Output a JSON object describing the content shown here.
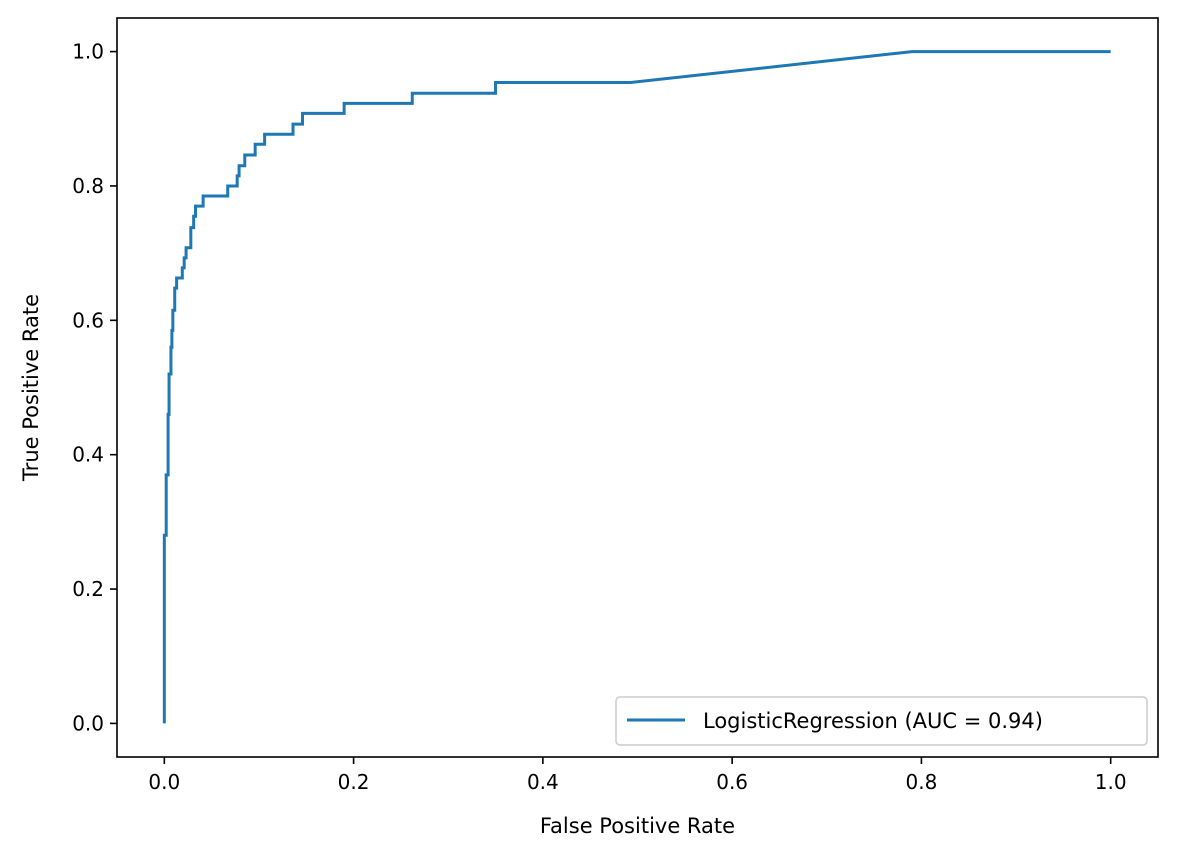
{
  "chart_data": {
    "type": "line",
    "title": "",
    "xlabel": "False Positive Rate",
    "ylabel": "True Positive Rate",
    "xlim": [
      -0.05,
      1.05
    ],
    "ylim": [
      -0.05,
      1.05
    ],
    "xticks": [
      0.0,
      0.2,
      0.4,
      0.6,
      0.8,
      1.0
    ],
    "xtick_labels": [
      "0.0",
      "0.2",
      "0.4",
      "0.6",
      "0.8",
      "1.0"
    ],
    "yticks": [
      0.0,
      0.2,
      0.4,
      0.6,
      0.8,
      1.0
    ],
    "ytick_labels": [
      "0.0",
      "0.2",
      "0.4",
      "0.6",
      "0.8",
      "1.0"
    ],
    "grid": false,
    "legend_position": "lower right",
    "series": [
      {
        "name": "LogisticRegression (AUC = 0.94)",
        "color": "#1f77b4",
        "x": [
          0.0,
          0.0,
          0.002,
          0.002,
          0.004,
          0.004,
          0.005,
          0.005,
          0.007,
          0.007,
          0.008,
          0.008,
          0.009,
          0.009,
          0.011,
          0.011,
          0.013,
          0.013,
          0.019,
          0.019,
          0.021,
          0.021,
          0.023,
          0.023,
          0.028,
          0.028,
          0.031,
          0.031,
          0.033,
          0.033,
          0.041,
          0.041,
          0.067,
          0.067,
          0.077,
          0.077,
          0.079,
          0.079,
          0.085,
          0.085,
          0.096,
          0.096,
          0.106,
          0.106,
          0.136,
          0.136,
          0.146,
          0.146,
          0.19,
          0.19,
          0.262,
          0.262,
          0.35,
          0.35,
          0.493,
          0.79,
          1.0
        ],
        "y": [
          0.0,
          0.28,
          0.28,
          0.37,
          0.37,
          0.46,
          0.46,
          0.52,
          0.52,
          0.56,
          0.56,
          0.585,
          0.585,
          0.615,
          0.615,
          0.648,
          0.648,
          0.663,
          0.663,
          0.678,
          0.678,
          0.693,
          0.693,
          0.708,
          0.708,
          0.738,
          0.738,
          0.755,
          0.755,
          0.77,
          0.77,
          0.785,
          0.785,
          0.8,
          0.8,
          0.815,
          0.815,
          0.83,
          0.83,
          0.846,
          0.846,
          0.862,
          0.862,
          0.877,
          0.877,
          0.892,
          0.892,
          0.908,
          0.908,
          0.923,
          0.923,
          0.938,
          0.938,
          0.954,
          0.954,
          1.0,
          1.0
        ]
      }
    ]
  }
}
